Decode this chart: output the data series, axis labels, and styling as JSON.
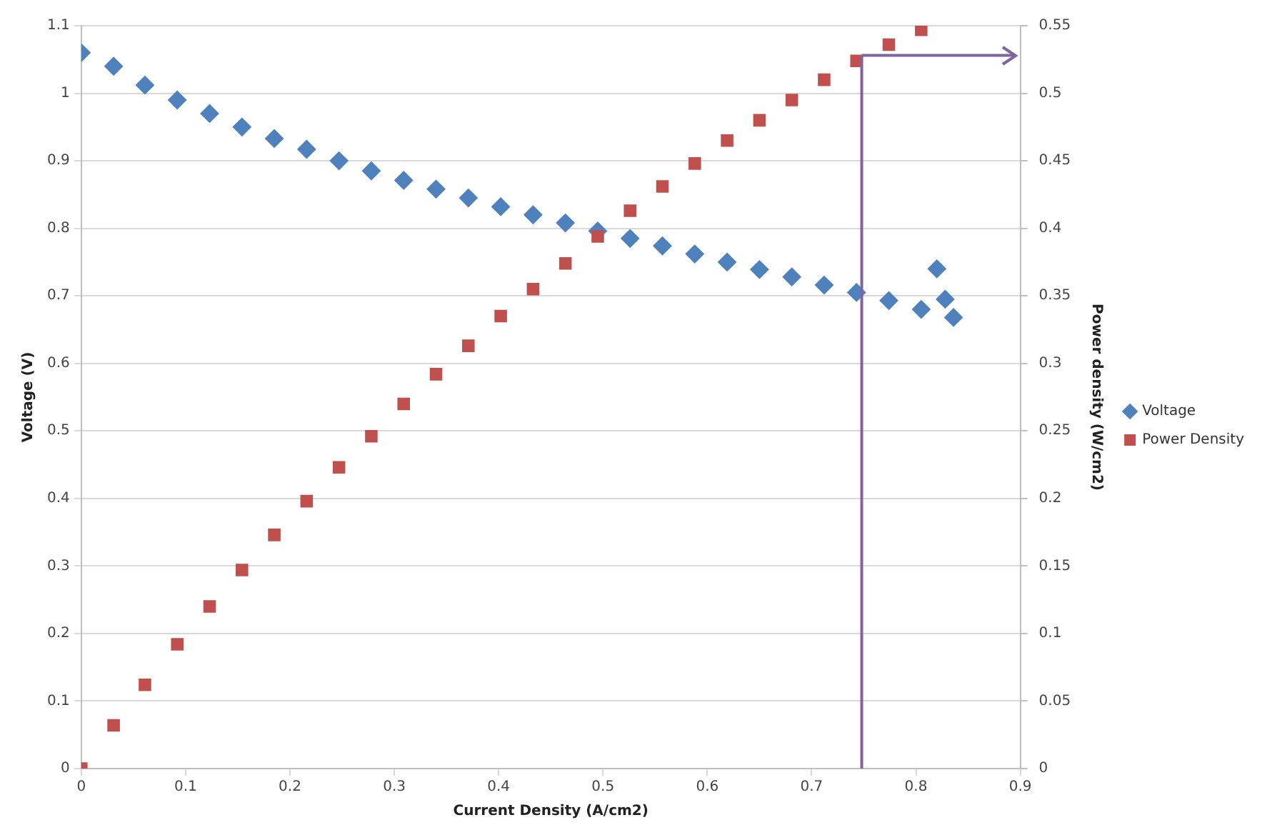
{
  "chart_data": {
    "type": "scatter",
    "xlabel": "Current Density (A/cm2)",
    "ylabel": "Voltage (V)",
    "y2label": "Power density (W/cm2)",
    "xlim": [
      0,
      0.9
    ],
    "xticks": [
      0,
      0.1,
      0.2,
      0.3,
      0.4,
      0.5,
      0.6,
      0.7,
      0.8,
      0.9
    ],
    "ylim": [
      0,
      1.1
    ],
    "yticks": [
      0,
      0.1,
      0.2,
      0.3,
      0.4,
      0.5,
      0.6,
      0.7,
      0.8,
      0.9,
      1,
      1.1
    ],
    "y2lim": [
      0,
      0.55
    ],
    "y2ticks": [
      0,
      0.05,
      0.1,
      0.15,
      0.2,
      0.25,
      0.3,
      0.35,
      0.4,
      0.45,
      0.5,
      0.55
    ],
    "grid": "y",
    "legend": "right",
    "series": [
      {
        "name": "Voltage",
        "color": "#4f81bd",
        "marker": "diamond",
        "x": [
          0,
          0.031,
          0.061,
          0.092,
          0.123,
          0.154,
          0.185,
          0.216,
          0.247,
          0.278,
          0.309,
          0.34,
          0.371,
          0.402,
          0.433,
          0.464,
          0.495,
          0.526,
          0.557,
          0.588,
          0.619,
          0.65,
          0.681,
          0.712,
          0.743,
          0.774,
          0.805,
          0.82,
          0.828,
          0.836
        ],
        "values": [
          1.06,
          1.04,
          1.012,
          0.99,
          0.97,
          0.95,
          0.933,
          0.917,
          0.9,
          0.885,
          0.871,
          0.858,
          0.845,
          0.832,
          0.82,
          0.808,
          0.796,
          0.785,
          0.774,
          0.762,
          0.75,
          0.739,
          0.728,
          0.716,
          0.705,
          0.693,
          0.68,
          0.74,
          0.695,
          0.668
        ]
      },
      {
        "name": "Power Density",
        "color": "#c0504d",
        "marker": "square",
        "axis": "y2",
        "x": [
          0,
          0.031,
          0.061,
          0.092,
          0.123,
          0.154,
          0.185,
          0.216,
          0.247,
          0.278,
          0.309,
          0.34,
          0.371,
          0.402,
          0.433,
          0.464,
          0.495,
          0.526,
          0.557,
          0.588,
          0.619,
          0.65,
          0.681,
          0.712,
          0.743,
          0.774,
          0.805
        ],
        "values": [
          0,
          0.032,
          0.062,
          0.092,
          0.12,
          0.147,
          0.173,
          0.198,
          0.223,
          0.246,
          0.27,
          0.292,
          0.313,
          0.335,
          0.355,
          0.374,
          0.394,
          0.413,
          0.431,
          0.448,
          0.465,
          0.48,
          0.495,
          0.51,
          0.524,
          0.536,
          0.547
        ]
      }
    ],
    "ref_lines": [
      {
        "axis": "x",
        "value": 0.748,
        "color": "#8064a2"
      },
      {
        "axis": "y2",
        "value": 0.528,
        "color": "#8064a2"
      }
    ]
  }
}
